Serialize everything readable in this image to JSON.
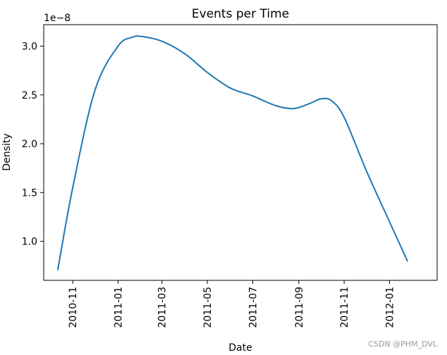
{
  "chart_data": {
    "type": "line",
    "title": "Events per Time",
    "xlabel": "Date",
    "ylabel": "Density",
    "y_offset_label": "1e−8",
    "xlim": [
      "2010-09-23",
      "2012-03-05"
    ],
    "ylim": [
      0.6,
      3.22
    ],
    "x_ticks": [
      "2010-11",
      "2011-01",
      "2011-03",
      "2011-05",
      "2011-07",
      "2011-09",
      "2011-11",
      "2012-01"
    ],
    "y_ticks": [
      "1.0",
      "1.5",
      "2.0",
      "2.5",
      "3.0"
    ],
    "grid": false,
    "colors": {
      "line": "#1f77b4"
    },
    "series": [
      {
        "x": [
          "2010-10-12",
          "2010-11-01",
          "2010-12-01",
          "2011-01-01",
          "2011-01-20",
          "2011-02-01",
          "2011-03-01",
          "2011-04-01",
          "2011-05-01",
          "2011-06-01",
          "2011-07-01",
          "2011-08-01",
          "2011-08-25",
          "2011-09-15",
          "2011-10-01",
          "2011-10-15",
          "2011-11-01",
          "2011-12-01",
          "2012-01-01",
          "2012-01-25"
        ],
        "values": [
          0.71,
          1.55,
          2.55,
          3.0,
          3.09,
          3.1,
          3.05,
          2.92,
          2.73,
          2.57,
          2.49,
          2.39,
          2.36,
          2.41,
          2.46,
          2.44,
          2.27,
          1.72,
          1.2,
          0.8
        ]
      }
    ]
  },
  "watermark": "CSDN @PHM_DVL"
}
